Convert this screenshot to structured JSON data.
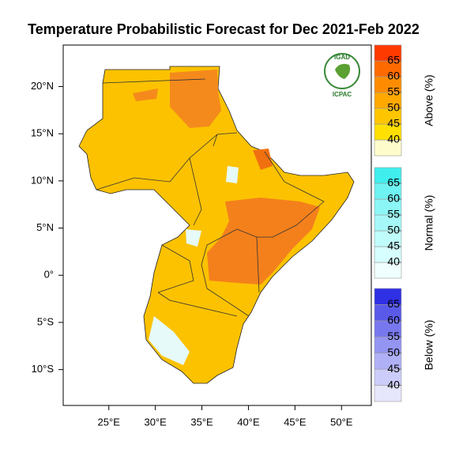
{
  "title": "Temperature Probabilistic Forecast for Dec 2021-Feb 2022",
  "map": {
    "xlim": [
      20.1,
      53.2
    ],
    "ylim": [
      -13.8,
      24.4
    ],
    "xticks": [
      {
        "value": 25,
        "label": "25°E"
      },
      {
        "value": 30,
        "label": "30°E"
      },
      {
        "value": 35,
        "label": "35°E"
      },
      {
        "value": 40,
        "label": "40°E"
      },
      {
        "value": 45,
        "label": "45°E"
      },
      {
        "value": 50,
        "label": "50°E"
      }
    ],
    "yticks": [
      {
        "value": 20,
        "label": "20°N"
      },
      {
        "value": 15,
        "label": "15°N"
      },
      {
        "value": 10,
        "label": "10°N"
      },
      {
        "value": 5,
        "label": "5°N"
      },
      {
        "value": 0,
        "label": "0°"
      },
      {
        "value": -5,
        "label": "5°S"
      },
      {
        "value": -10,
        "label": "10°S"
      }
    ]
  },
  "logo": {
    "top": "IGAD",
    "bottom": "ICPAC"
  },
  "legends": [
    {
      "name": "Above (%)",
      "ticks": [
        40,
        45,
        50,
        55,
        60,
        65
      ],
      "colors": [
        "#fffccc",
        "#ffe000",
        "#ffc600",
        "#ffa800",
        "#ff8c00",
        "#ff6a00",
        "#ff3a00"
      ]
    },
    {
      "name": "Normal (%)",
      "ticks": [
        40,
        45,
        50,
        55,
        60,
        65
      ],
      "colors": [
        "#f0ffff",
        "#d6ffff",
        "#bffcfc",
        "#a6f8f8",
        "#8cf6f6",
        "#6ef2f2",
        "#40eeee"
      ]
    },
    {
      "name": "Below (%)",
      "ticks": [
        40,
        45,
        50,
        55,
        60,
        65
      ],
      "colors": [
        "#e6e6fc",
        "#ccccfa",
        "#b0b0f6",
        "#9494f2",
        "#7878ee",
        "#5a5aea",
        "#3030e4"
      ]
    }
  ]
}
